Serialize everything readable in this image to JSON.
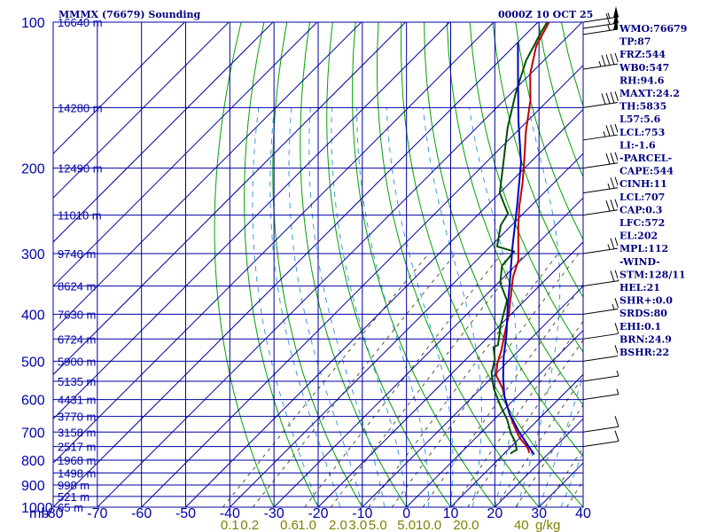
{
  "header": {
    "title": "MMMX (76679) Sounding",
    "time": "0000Z 10 OCT 25"
  },
  "chart_data": {
    "type": "line",
    "title": "MMMX (76679) Sounding",
    "xlabel": "",
    "ylabel": "mb",
    "xlim": [
      -80,
      40
    ],
    "ylim": [
      1000,
      100
    ],
    "log_scale_y": true,
    "grid": true,
    "pressure_levels": [
      100,
      200,
      300,
      400,
      500,
      600,
      700,
      800,
      900,
      1000
    ],
    "height_labels": [
      {
        "p": 100,
        "label": "16640 m"
      },
      {
        "p": 150,
        "label": "14280 m"
      },
      {
        "p": 200,
        "label": "12490 m"
      },
      {
        "p": 250,
        "label": "11010 m"
      },
      {
        "p": 300,
        "label": "9740 m"
      },
      {
        "p": 350,
        "label": "8624 m"
      },
      {
        "p": 400,
        "label": "7630 m"
      },
      {
        "p": 450,
        "label": "6724 m"
      },
      {
        "p": 500,
        "label": "5900 m"
      },
      {
        "p": 550,
        "label": "5135 m"
      },
      {
        "p": 600,
        "label": "4431 m"
      },
      {
        "p": 650,
        "label": "3770 m"
      },
      {
        "p": 700,
        "label": "3158 m"
      },
      {
        "p": 750,
        "label": "2517 m"
      },
      {
        "p": 800,
        "label": "1968 m"
      },
      {
        "p": 850,
        "label": "1498 m"
      },
      {
        "p": 900,
        "label": "998 m"
      },
      {
        "p": 950,
        "label": "521 m"
      },
      {
        "p": 1000,
        "label": "65 m"
      }
    ],
    "temp_ticks": [
      -80,
      -70,
      -60,
      -50,
      -40,
      -30,
      -20,
      -10,
      0,
      10,
      20,
      30,
      40
    ],
    "temp_tick_labels": [
      "-80",
      "-70",
      "-60",
      "-50",
      "-40",
      "-30",
      "-20",
      "-10",
      "0",
      "10",
      "20",
      "30",
      "40"
    ],
    "mb_label": "mb",
    "mixing_ratio_labels": [
      {
        "x": -40,
        "label": "0.1"
      },
      {
        "x": -35.5,
        "label": "0.2"
      },
      {
        "x": -26.5,
        "label": "0.6"
      },
      {
        "x": -22.5,
        "label": "1.0"
      },
      {
        "x": -15.5,
        "label": "2.0"
      },
      {
        "x": -11,
        "label": "3.0"
      },
      {
        "x": -6.5,
        "label": "5.0"
      },
      {
        "x": 0,
        "label": "5.0"
      },
      {
        "x": 5,
        "label": "10.0"
      },
      {
        "x": 13.5,
        "label": "20.0"
      },
      {
        "x": 26,
        "label": "40"
      },
      {
        "x": 32,
        "label": "g/kg"
      }
    ],
    "series": [
      {
        "name": "Temperature",
        "color": "#c00000",
        "points": [
          [
            15.5,
            773
          ],
          [
            14.5,
            760
          ],
          [
            13,
            745
          ],
          [
            10,
            720
          ],
          [
            7,
            690
          ],
          [
            3,
            650
          ],
          [
            -1,
            610
          ],
          [
            -5,
            570
          ],
          [
            -9.5,
            535
          ],
          [
            -12,
            505
          ],
          [
            -14,
            475
          ],
          [
            -16.5,
            445
          ],
          [
            -20.5,
            400
          ],
          [
            -25,
            360
          ],
          [
            -28,
            335
          ],
          [
            -30.5,
            310
          ],
          [
            -34,
            288
          ],
          [
            -38,
            265
          ],
          [
            -42.5,
            240
          ],
          [
            -47,
            215
          ],
          [
            -52,
            192
          ],
          [
            -58,
            168
          ],
          [
            -64,
            145
          ],
          [
            -70,
            128
          ],
          [
            -75,
            112
          ],
          [
            -77.5,
            100
          ]
        ]
      },
      {
        "name": "Dewpoint",
        "color": "#005000",
        "points": [
          [
            11.5,
            776
          ],
          [
            11.5,
            770
          ],
          [
            12,
            762
          ],
          [
            10,
            735
          ],
          [
            7,
            705
          ],
          [
            3,
            660
          ],
          [
            -2,
            615
          ],
          [
            -7,
            570
          ],
          [
            -11,
            530
          ],
          [
            -13.5,
            495
          ],
          [
            -16.5,
            468
          ],
          [
            -16,
            463
          ],
          [
            -20,
            420
          ],
          [
            -24,
            375
          ],
          [
            -29.5,
            345
          ],
          [
            -33,
            318
          ],
          [
            -33.5,
            297
          ],
          [
            -38.5,
            290
          ],
          [
            -42.5,
            262
          ],
          [
            -43.5,
            248
          ],
          [
            -50,
            225
          ],
          [
            -56,
            195
          ],
          [
            -63,
            165
          ],
          [
            -69,
            140
          ],
          [
            -74,
            120
          ],
          [
            -77,
            105
          ],
          [
            -78.5,
            97
          ]
        ]
      },
      {
        "name": "Parcel",
        "color": "#0000c0",
        "points": [
          [
            17,
            779
          ],
          [
            8.5,
            700
          ],
          [
            2,
            640
          ],
          [
            -3,
            590
          ],
          [
            -7.5,
            540
          ],
          [
            -12,
            490
          ],
          [
            -16.5,
            440
          ],
          [
            -22,
            390
          ],
          [
            -28,
            340
          ],
          [
            -35,
            290
          ],
          [
            -43,
            240
          ],
          [
            -52,
            195
          ],
          [
            -62,
            160
          ],
          [
            -72,
            130
          ],
          [
            -80,
            110
          ]
        ]
      }
    ],
    "wind_barbs": [
      {
        "p": 100,
        "spd": 55
      },
      {
        "p": 103,
        "spd": 60
      },
      {
        "p": 106,
        "spd": 55
      },
      {
        "p": 125,
        "spd": 45
      },
      {
        "p": 150,
        "spd": 40
      },
      {
        "p": 175,
        "spd": 35
      },
      {
        "p": 200,
        "spd": 30
      },
      {
        "p": 225,
        "spd": 25
      },
      {
        "p": 250,
        "spd": 30
      },
      {
        "p": 300,
        "spd": 25
      },
      {
        "p": 350,
        "spd": 20
      },
      {
        "p": 400,
        "spd": 15
      },
      {
        "p": 450,
        "spd": 10
      },
      {
        "p": 500,
        "spd": 10
      },
      {
        "p": 550,
        "spd": 5
      },
      {
        "p": 600,
        "spd": 5
      },
      {
        "p": 700,
        "spd": 10
      },
      {
        "p": 750,
        "spd": 10
      }
    ]
  },
  "stats": [
    "WMO:76679",
    "TP:87",
    "FRZ:544",
    "WB0:547",
    "RH:94.6",
    "MAXT:24.2",
    "TH:5835",
    "L57:5.6",
    "LCL:753",
    "LI:-1.6",
    "-PARCEL-",
    "CAPE:544",
    "CINH:11",
    "LCL:707",
    "CAP:0.3",
    "LFC:572",
    "EL:202",
    "MPL:112",
    "-WIND-",
    "STM:128/11",
    "HEL:21",
    "SHR+:0.0",
    "SRDS:80",
    "EHI:0.1",
    "BRN:24.9",
    "BSHR:22"
  ]
}
